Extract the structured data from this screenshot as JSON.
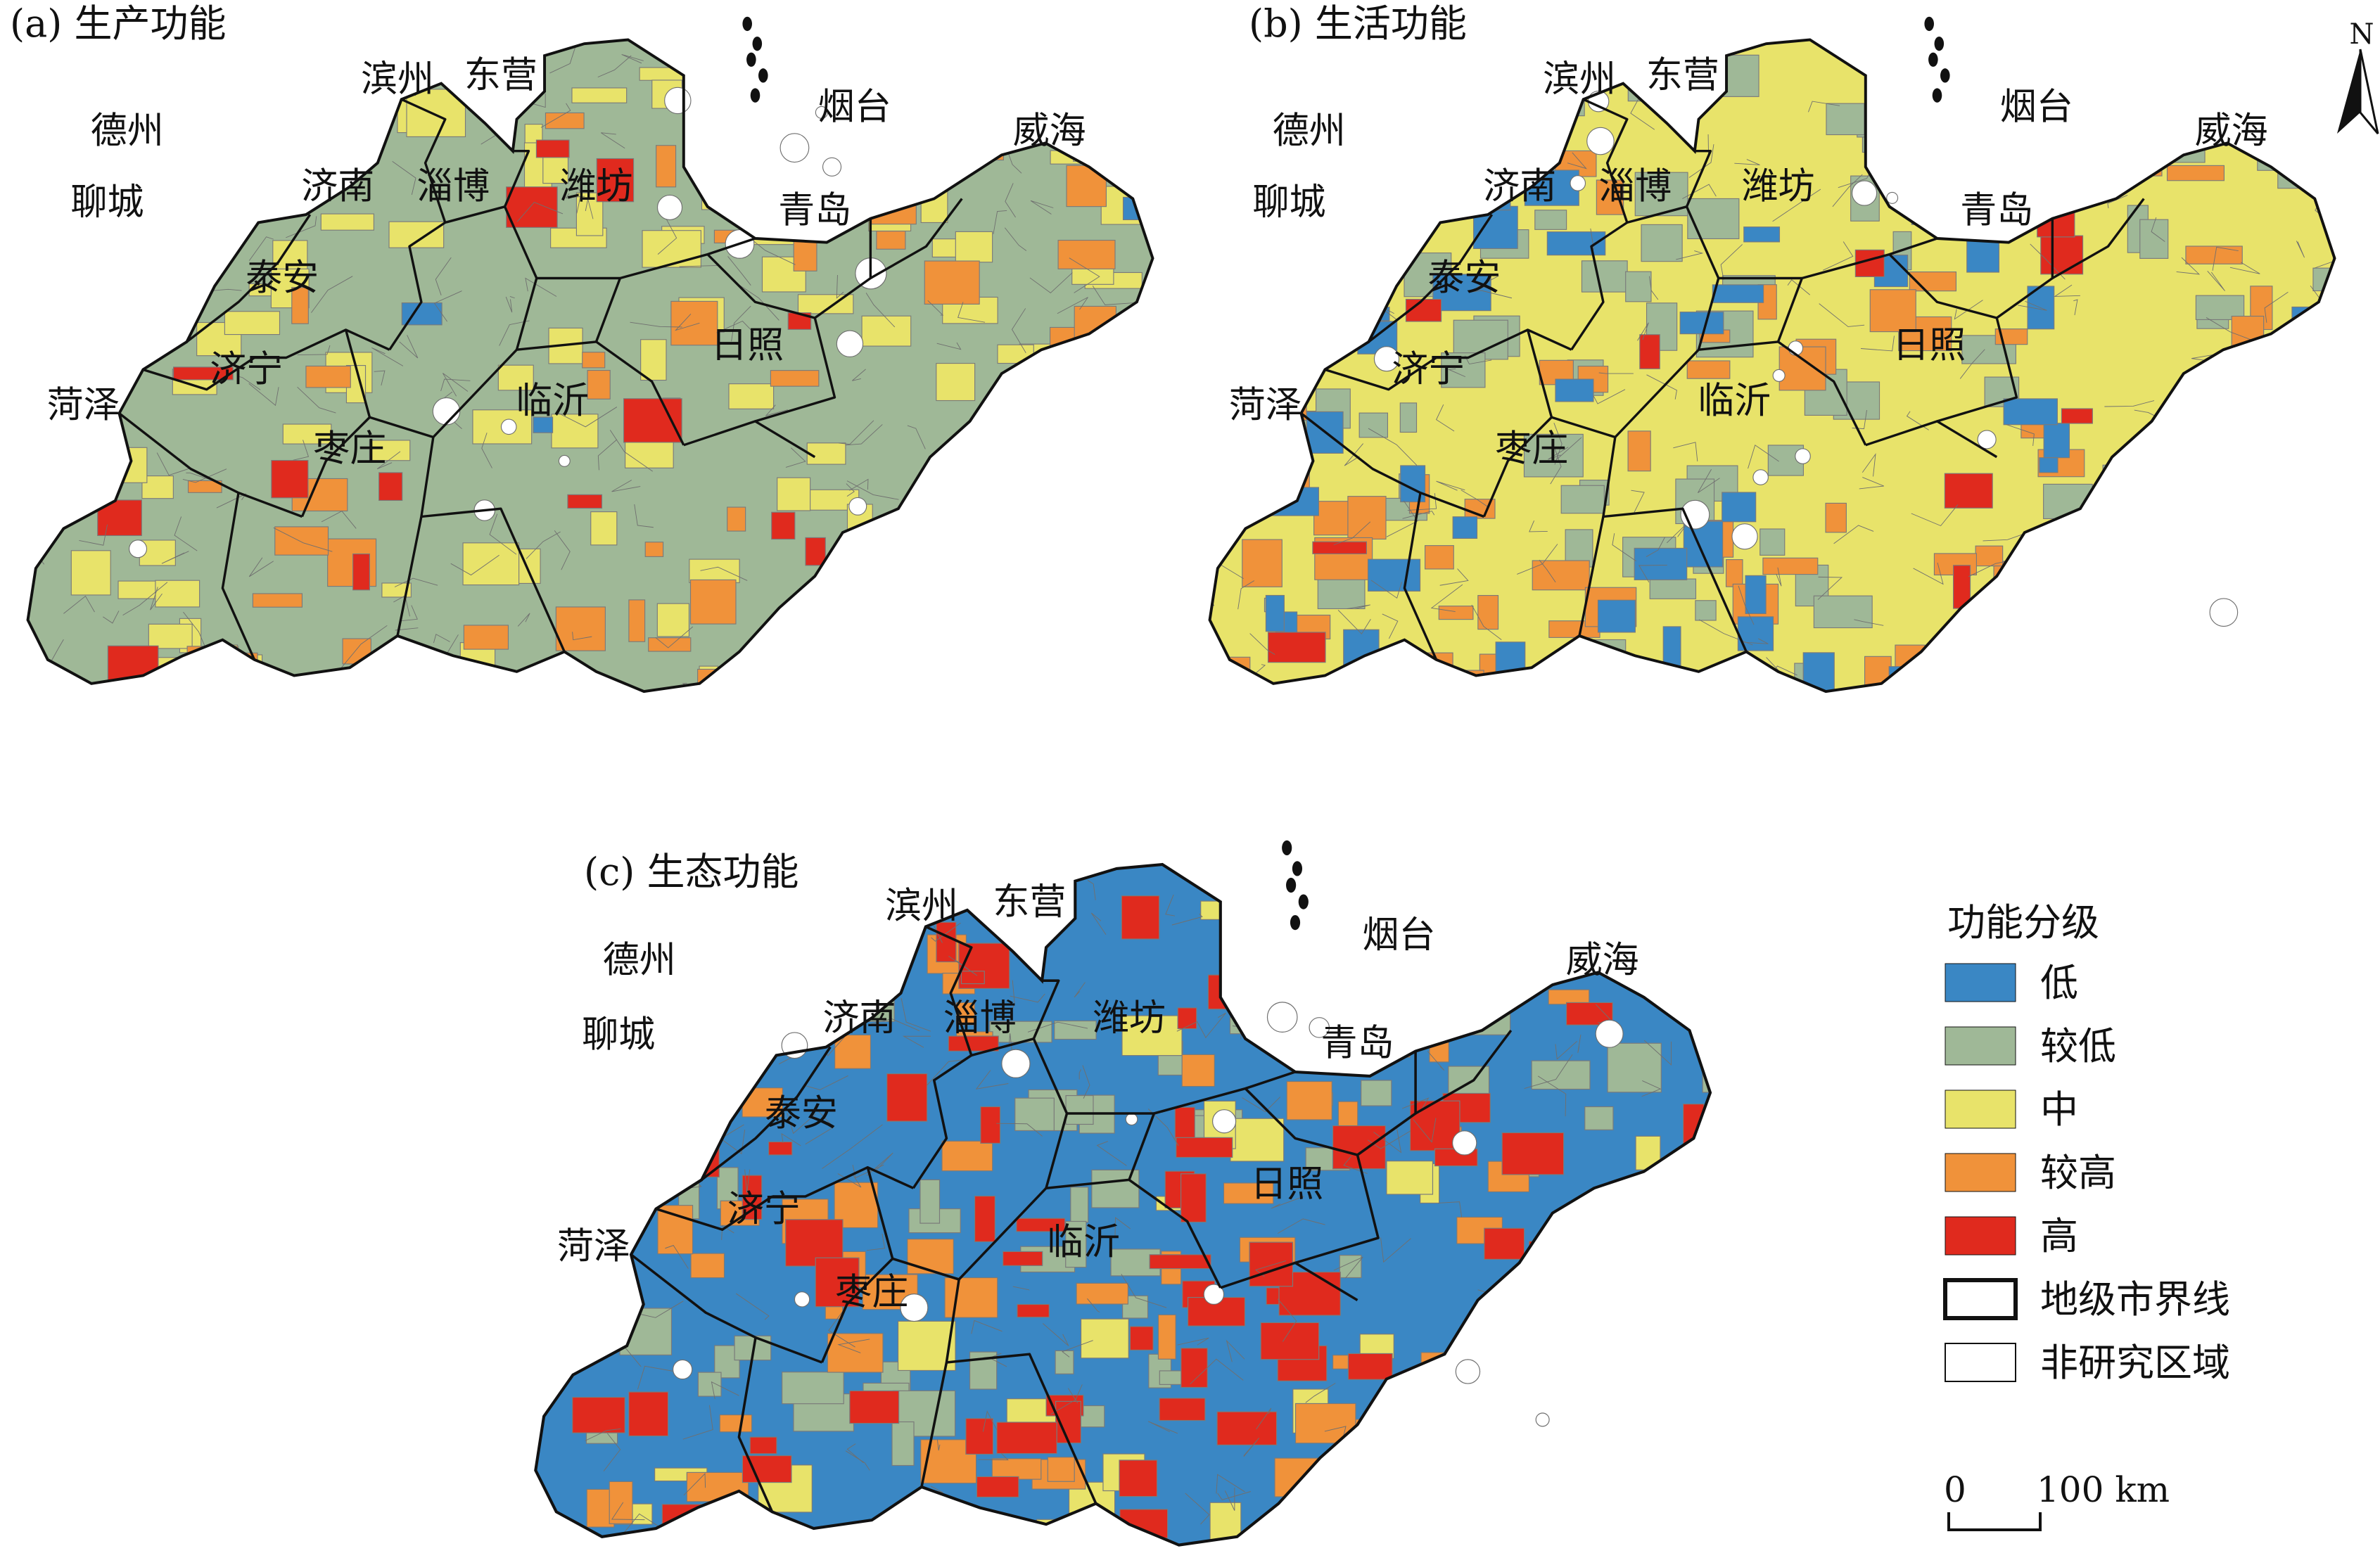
{
  "panels": [
    {
      "title": "(a) 生产功能",
      "base": "#9fb897",
      "cities": [
        "德州",
        "滨州",
        "东营",
        "烟台",
        "威海",
        "聊城",
        "济南",
        "淄博",
        "潍坊",
        "青岛",
        "泰安",
        "日照",
        "济宁",
        "菏泽",
        "临沂",
        "枣庄"
      ],
      "patches": [
        {
          "level": "中",
          "share": 0.28
        },
        {
          "level": "较高",
          "share": 0.12
        },
        {
          "level": "高",
          "share": 0.05
        },
        {
          "level": "低",
          "share": 0.01
        }
      ]
    },
    {
      "title": "(b) 生活功能",
      "base": "#e8e36a",
      "cities": [
        "德州",
        "滨州",
        "东营",
        "烟台",
        "威海",
        "聊城",
        "济南",
        "淄博",
        "潍坊",
        "青岛",
        "泰安",
        "日照",
        "济宁",
        "菏泽",
        "临沂",
        "枣庄"
      ],
      "patches": [
        {
          "level": "较低",
          "share": 0.22
        },
        {
          "level": "较高",
          "share": 0.16
        },
        {
          "level": "低",
          "share": 0.14
        },
        {
          "level": "高",
          "share": 0.03
        }
      ]
    },
    {
      "title": "(c) 生态功能",
      "base": "#3a87c4",
      "cities": [
        "德州",
        "滨州",
        "东营",
        "烟台",
        "威海",
        "聊城",
        "济南",
        "淄博",
        "潍坊",
        "青岛",
        "泰安",
        "日照",
        "济宁",
        "菏泽",
        "临沂",
        "枣庄"
      ],
      "patches": [
        {
          "level": "较低",
          "share": 0.16
        },
        {
          "level": "中",
          "share": 0.08
        },
        {
          "level": "较高",
          "share": 0.16
        },
        {
          "level": "高",
          "share": 0.24
        }
      ]
    }
  ],
  "legend": {
    "title": "功能分级",
    "items": [
      {
        "label": "低",
        "color": "#3a87c4"
      },
      {
        "label": "较低",
        "color": "#9fb897"
      },
      {
        "label": "中",
        "color": "#e8e36a"
      },
      {
        "label": "较高",
        "color": "#f0923a"
      },
      {
        "label": "高",
        "color": "#e02a1e"
      },
      {
        "label": "地级市界线",
        "color": "#ffffff",
        "outline": true
      },
      {
        "label": "非研究区域",
        "color": "#ffffff",
        "outline": false
      }
    ]
  },
  "scale_bar": {
    "left": "0",
    "right": "100 km"
  },
  "north_arrow": {
    "label": "N"
  }
}
